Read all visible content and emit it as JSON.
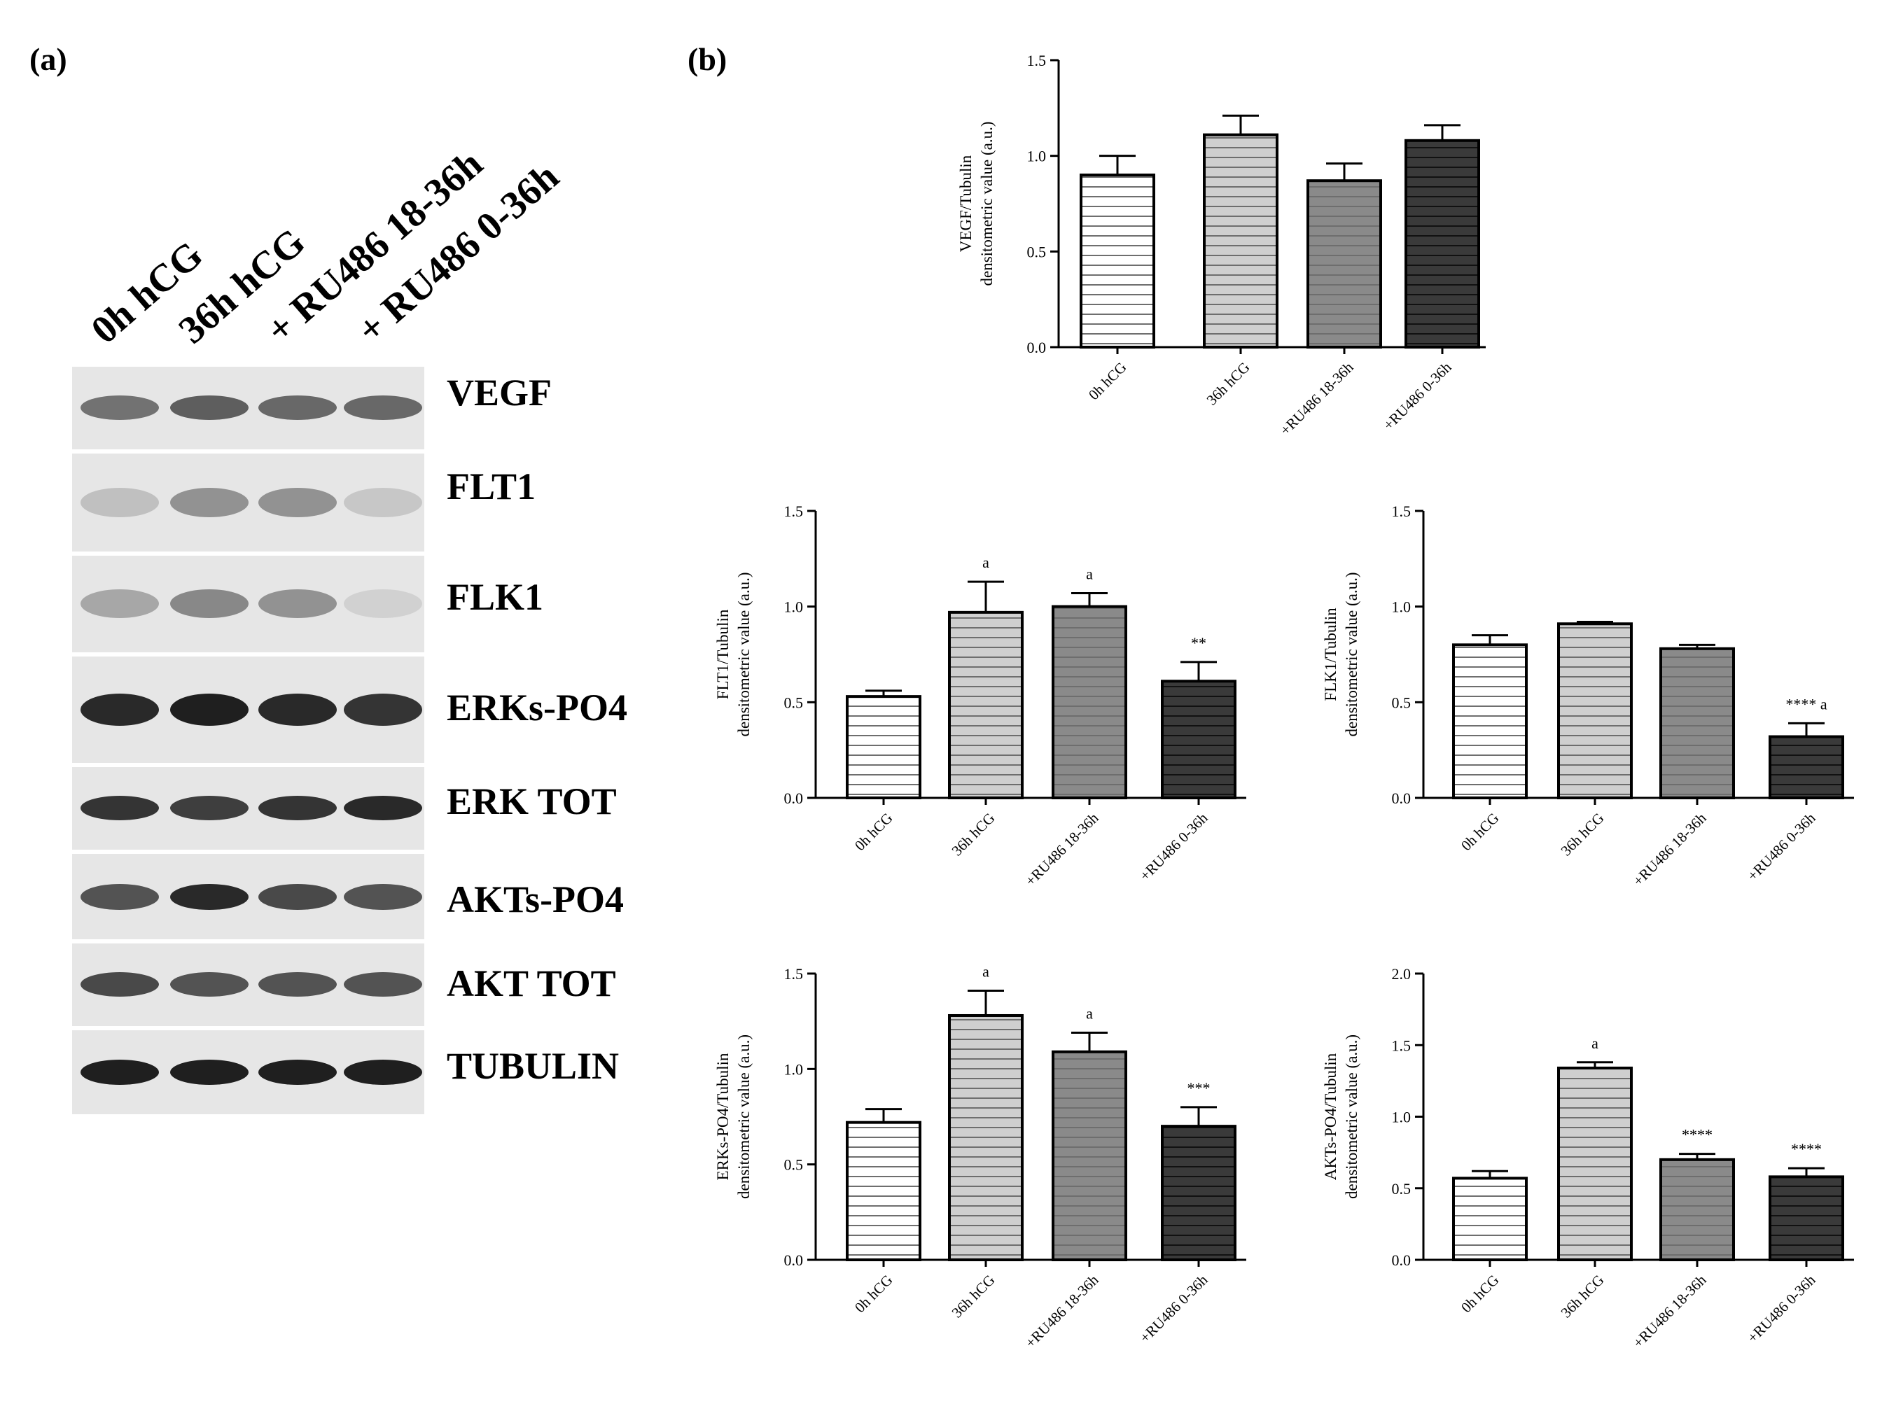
{
  "panels": {
    "a": "(a)",
    "b": "(b)"
  },
  "lanes": [
    "0h hCG",
    "36h hCG",
    "+ RU486 18-36h",
    "+ RU486 0-36h"
  ],
  "blots": [
    {
      "label": "VEGF",
      "intensity": [
        0.55,
        0.65,
        0.6,
        0.6
      ]
    },
    {
      "label": "FLT1",
      "intensity": [
        0.18,
        0.4,
        0.4,
        0.15
      ]
    },
    {
      "label": "FLK1",
      "intensity": [
        0.3,
        0.45,
        0.4,
        0.1
      ]
    },
    {
      "label": "ERKs-PO4",
      "intensity": [
        0.9,
        0.95,
        0.9,
        0.85
      ]
    },
    {
      "label": "ERK TOT",
      "intensity": [
        0.85,
        0.8,
        0.85,
        0.9
      ]
    },
    {
      "label": "AKTs-PO4",
      "intensity": [
        0.7,
        0.9,
        0.75,
        0.7
      ]
    },
    {
      "label": "AKT TOT",
      "intensity": [
        0.75,
        0.7,
        0.7,
        0.7
      ]
    },
    {
      "label": "TUBULIN",
      "intensity": [
        0.95,
        0.95,
        0.95,
        0.95
      ]
    }
  ],
  "colors": {
    "bar_fill": [
      "#ffffff",
      "#cfcfcf",
      "#8a8a8a",
      "#3a3a3a"
    ],
    "stripe": "#6e6e6e",
    "axis": "#000000"
  },
  "chart_data": [
    {
      "type": "bar",
      "categories": [
        "0h hCG",
        "36h hCG",
        "+RU486 18-36h",
        "+RU486 0-36h"
      ],
      "values": [
        0.9,
        1.11,
        0.87,
        1.08
      ],
      "errors": [
        0.1,
        0.1,
        0.09,
        0.08
      ],
      "annotations": [
        "",
        "",
        "",
        ""
      ],
      "ylabel": [
        "VEGF/Tubulin",
        "densitometric value (a.u.)"
      ],
      "ylim": [
        0,
        1.5
      ],
      "yticks": [
        "0.0",
        "0.5",
        "1.0",
        "1.5"
      ]
    },
    {
      "type": "bar",
      "categories": [
        "0h hCG",
        "36h hCG",
        "+RU486 18-36h",
        "+RU486 0-36h"
      ],
      "values": [
        0.53,
        0.97,
        1.0,
        0.61
      ],
      "errors": [
        0.03,
        0.16,
        0.07,
        0.1
      ],
      "annotations": [
        "",
        "a",
        "a",
        "**"
      ],
      "ylabel": [
        "FLT1/Tubulin",
        "densitometric value (a.u.)"
      ],
      "ylim": [
        0,
        1.5
      ],
      "yticks": [
        "0.0",
        "0.5",
        "1.0",
        "1.5"
      ]
    },
    {
      "type": "bar",
      "categories": [
        "0h hCG",
        "36h hCG",
        "+RU486 18-36h",
        "+RU486 0-36h"
      ],
      "values": [
        0.8,
        0.91,
        0.78,
        0.32
      ],
      "errors": [
        0.05,
        0.01,
        0.02,
        0.07
      ],
      "annotations": [
        "",
        "",
        "",
        "**** a"
      ],
      "ylabel": [
        "FLK1/Tubulin",
        "densitometric value (a.u.)"
      ],
      "ylim": [
        0,
        1.5
      ],
      "yticks": [
        "0.0",
        "0.5",
        "1.0",
        "1.5"
      ]
    },
    {
      "type": "bar",
      "categories": [
        "0h hCG",
        "36h hCG",
        "+RU486 18-36h",
        "+RU486 0-36h"
      ],
      "values": [
        0.72,
        1.28,
        1.09,
        0.7
      ],
      "errors": [
        0.07,
        0.13,
        0.1,
        0.1
      ],
      "annotations": [
        "",
        "a",
        "a",
        "***"
      ],
      "ylabel": [
        "ERKs-PO4/Tubulin",
        "densitometric value (a.u.)"
      ],
      "ylim": [
        0,
        1.5
      ],
      "yticks": [
        "0.0",
        "0.5",
        "1.0",
        "1.5"
      ]
    },
    {
      "type": "bar",
      "categories": [
        "0h hCG",
        "36h hCG",
        "+RU486 18-36h",
        "+RU486 0-36h"
      ],
      "values": [
        0.57,
        1.34,
        0.7,
        0.58
      ],
      "errors": [
        0.05,
        0.04,
        0.04,
        0.06
      ],
      "annotations": [
        "",
        "a",
        "****",
        "****"
      ],
      "ylabel": [
        "AKTs-PO4/Tubulin",
        "densitometric value (a.u.)"
      ],
      "ylim": [
        0,
        2.0
      ],
      "yticks": [
        "0.0",
        "0.5",
        "1.0",
        "1.5",
        "2.0"
      ]
    }
  ]
}
